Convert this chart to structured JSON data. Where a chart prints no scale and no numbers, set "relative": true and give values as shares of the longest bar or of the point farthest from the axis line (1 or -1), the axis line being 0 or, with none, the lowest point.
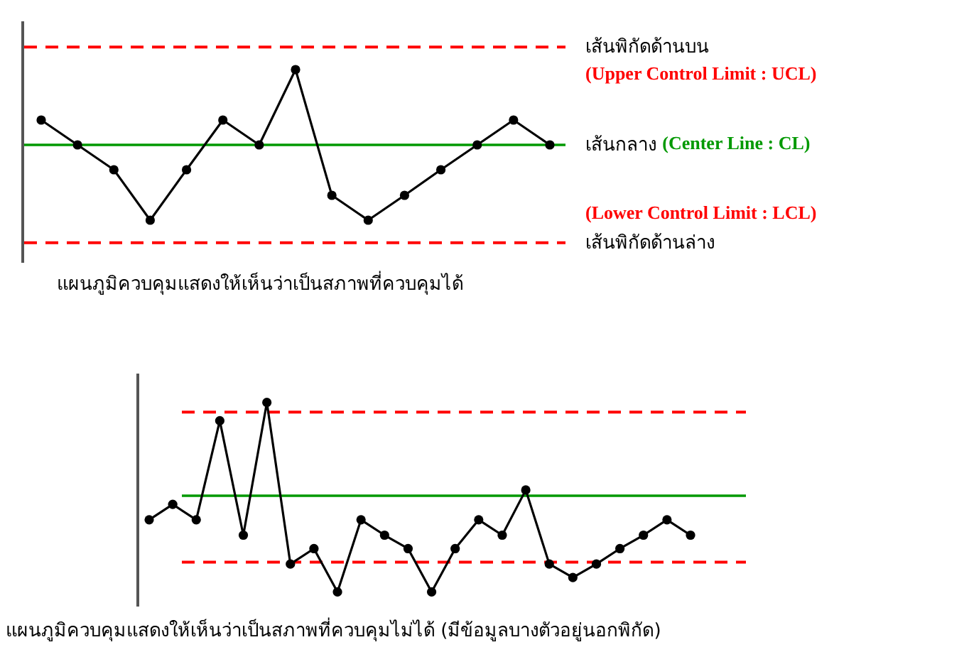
{
  "chart_data": [
    {
      "type": "line",
      "relative": true,
      "marker": "circle",
      "line_style": "solid",
      "categories": [
        null,
        null,
        null,
        null,
        null,
        null,
        null,
        null,
        null,
        null,
        null,
        null,
        null,
        null,
        null
      ],
      "series": [
        {
          "color": "#000000",
          "values": [
            0.33,
            0,
            -0.33,
            -1,
            -0.33,
            0.33,
            0,
            1,
            -0.67,
            -1,
            -0.67,
            -0.33,
            0,
            0.33,
            0
          ]
        }
      ],
      "ref_lines": [
        {
          "axis": "y",
          "value": 1.3,
          "label": "เส้นพิกัดด้านบน\n(Upper Control Limit : UCL)",
          "color": "#ff0000",
          "line_style": "dashed"
        },
        {
          "axis": "y",
          "value": 0,
          "label": "เส้นกลาง (Center Line : CL)",
          "color": "#009900",
          "line_style": "solid"
        },
        {
          "axis": "y",
          "value": -1.3,
          "label": "(Lower Control Limit : LCL)\nเส้นพิกัดด้านล่าง",
          "color": "#ff0000",
          "line_style": "dashed"
        }
      ],
      "annotations": [
        "แผนภูมิควบคุมแสดงให้เห็นว่าเป็นสภาพที่ควบคุมได้"
      ]
    },
    {
      "type": "line",
      "relative": true,
      "marker": "circle",
      "line_style": "solid",
      "categories": [
        null,
        null,
        null,
        null,
        null,
        null,
        null,
        null,
        null,
        null,
        null,
        null,
        null,
        null,
        null,
        null,
        null,
        null,
        null,
        null,
        null,
        null,
        null,
        null
      ],
      "series": [
        {
          "color": "#000000",
          "values": [
            -0.25,
            -0.09,
            -0.25,
            0.78,
            -0.41,
            0.97,
            -0.71,
            -0.55,
            -1,
            -0.25,
            -0.41,
            -0.55,
            -1,
            -0.55,
            -0.25,
            -0.41,
            0.06,
            -0.71,
            -0.85,
            -0.71,
            -0.55,
            -0.41,
            -0.25,
            -0.41
          ]
        }
      ],
      "ref_lines": [
        {
          "axis": "y",
          "value": 0.87,
          "color": "#ff0000",
          "line_style": "dashed"
        },
        {
          "axis": "y",
          "value": 0,
          "color": "#009900",
          "line_style": "solid"
        },
        {
          "axis": "y",
          "value": -0.69,
          "color": "#ff0000",
          "line_style": "dashed"
        }
      ],
      "annotations": [
        "แผนภูมิควบคุมแสดงให้เห็นว่าเป็นสภาพที่ควบคุมไม่ได้ (มีข้อมูลบางตัวอยู่นอกพิกัด)"
      ]
    }
  ]
}
